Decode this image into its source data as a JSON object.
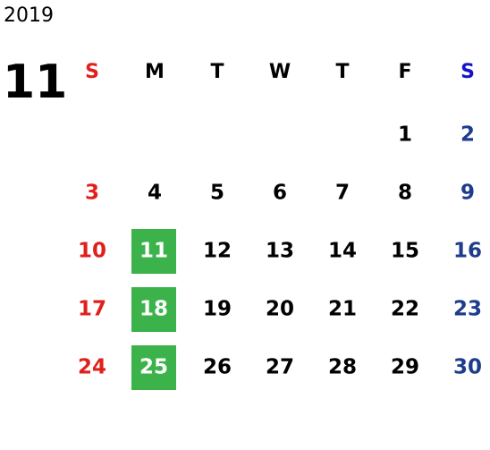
{
  "year": "2019",
  "month": "11",
  "weekdays": [
    "S",
    "M",
    "T",
    "W",
    "T",
    "F",
    "S"
  ],
  "weeks": [
    [
      null,
      null,
      null,
      null,
      null,
      1,
      2
    ],
    [
      3,
      4,
      5,
      6,
      7,
      8,
      9
    ],
    [
      10,
      11,
      12,
      13,
      14,
      15,
      16
    ],
    [
      17,
      18,
      19,
      20,
      21,
      22,
      23
    ],
    [
      24,
      25,
      26,
      27,
      28,
      29,
      30
    ]
  ],
  "highlighted": [
    11,
    18,
    25
  ],
  "highlight_color": "#3bb34a",
  "colors": {
    "sunday": "#e0201c",
    "saturday_header": "#1414c8",
    "saturday": "#1e3c8c",
    "weekday": "#000000",
    "highlighted_text": "#ffffff"
  }
}
